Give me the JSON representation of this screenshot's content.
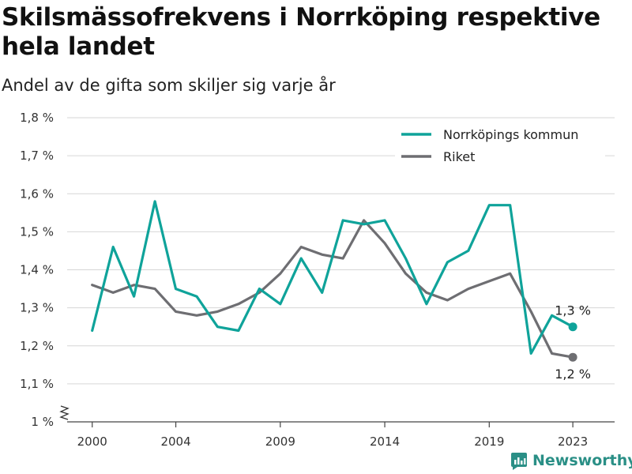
{
  "header": {
    "title": "Skilsmässofrekvens i Norrköping respektive hela landet",
    "subtitle": "Andel av de gifta som skiljer sig varje år"
  },
  "brand": {
    "name": "Newsworthy",
    "logo_icon": "newsworthy-logo-icon",
    "color": "#2a8f86"
  },
  "chart_data": {
    "type": "line",
    "title": "Skilsmässofrekvens i Norrköping respektive hela landet",
    "subtitle": "Andel av de gifta som skiljer sig varje år",
    "xlabel": "",
    "ylabel": "",
    "x": [
      2000,
      2001,
      2002,
      2003,
      2004,
      2005,
      2006,
      2007,
      2008,
      2009,
      2010,
      2011,
      2012,
      2013,
      2014,
      2015,
      2016,
      2017,
      2018,
      2019,
      2020,
      2021,
      2022,
      2023
    ],
    "x_ticks": [
      2000,
      2004,
      2009,
      2014,
      2019,
      2023
    ],
    "x_tick_labels": [
      "2000",
      "2004",
      "2009",
      "2014",
      "2019",
      "2023"
    ],
    "ylim": [
      1.0,
      1.8
    ],
    "y_ticks": [
      1.0,
      1.1,
      1.2,
      1.3,
      1.4,
      1.5,
      1.6,
      1.7,
      1.8
    ],
    "y_tick_labels": [
      "1 %",
      "1,1 %",
      "1,2 %",
      "1,3 %",
      "1,4 %",
      "1,5 %",
      "1,6 %",
      "1,7 %",
      "1,8 %"
    ],
    "y_axis_break": true,
    "grid": true,
    "legend_position": "top-right",
    "series": [
      {
        "name": "Norrköpings kommun",
        "color": "#0fa39a",
        "values": [
          1.24,
          1.46,
          1.33,
          1.58,
          1.35,
          1.33,
          1.25,
          1.24,
          1.35,
          1.31,
          1.43,
          1.34,
          1.53,
          1.52,
          1.53,
          1.43,
          1.31,
          1.42,
          1.45,
          1.57,
          1.57,
          1.18,
          1.28,
          1.25
        ],
        "end_label": "1,3 %"
      },
      {
        "name": "Riket",
        "color": "#6e6e72",
        "values": [
          1.36,
          1.34,
          1.36,
          1.35,
          1.29,
          1.28,
          1.29,
          1.31,
          1.34,
          1.39,
          1.46,
          1.44,
          1.43,
          1.53,
          1.47,
          1.39,
          1.34,
          1.32,
          1.35,
          1.37,
          1.39,
          1.29,
          1.18,
          1.17
        ],
        "end_label": "1,2 %"
      }
    ]
  }
}
